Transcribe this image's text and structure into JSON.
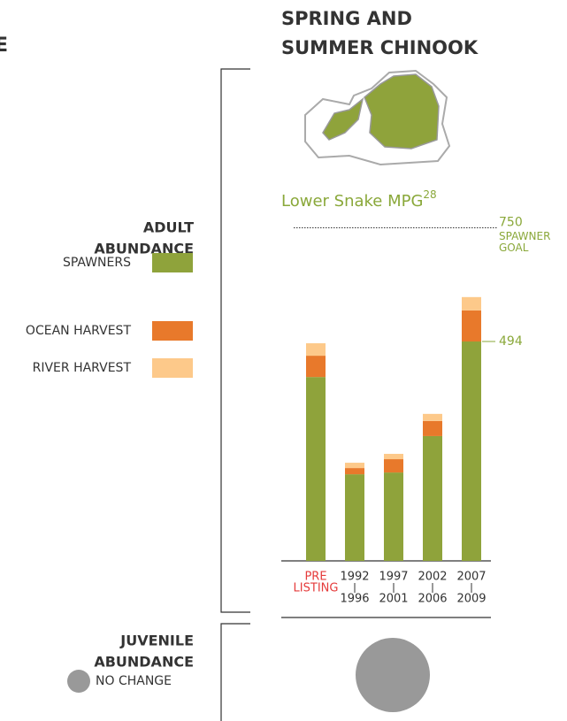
{
  "left_header": "E",
  "chart_data": {
    "type": "bar",
    "stacked": true,
    "title": [
      "SPRING AND",
      "SUMMER CHINOOK"
    ],
    "subtitle": "Lower Snake MPG",
    "subtitle_note": "28",
    "legend_title": [
      "ADULT",
      "ABUNDANCE"
    ],
    "categories": [
      [
        "PRE",
        "LISTING"
      ],
      [
        "1992",
        "1996"
      ],
      [
        "1997",
        "2001"
      ],
      [
        "2002",
        "2006"
      ],
      [
        "2007",
        "2009"
      ]
    ],
    "series": [
      {
        "name": "SPAWNERS",
        "color": "#8fa33b",
        "values": [
          414,
          195,
          199,
          281,
          494
        ]
      },
      {
        "name": "OCEAN HARVEST",
        "color": "#e8792b",
        "values": [
          48,
          14,
          30,
          34,
          70
        ]
      },
      {
        "name": "RIVER HARVEST",
        "color": "#fdc98a",
        "values": [
          28,
          12,
          12,
          16,
          30
        ]
      }
    ],
    "goal": {
      "value": 750,
      "label": [
        "SPAWNER",
        "GOAL"
      ]
    },
    "ylim": [
      0,
      800
    ]
  },
  "juvenile": {
    "title": [
      "JUVENILE",
      "ABUNDANCE"
    ],
    "legend": "NO CHANGE"
  }
}
